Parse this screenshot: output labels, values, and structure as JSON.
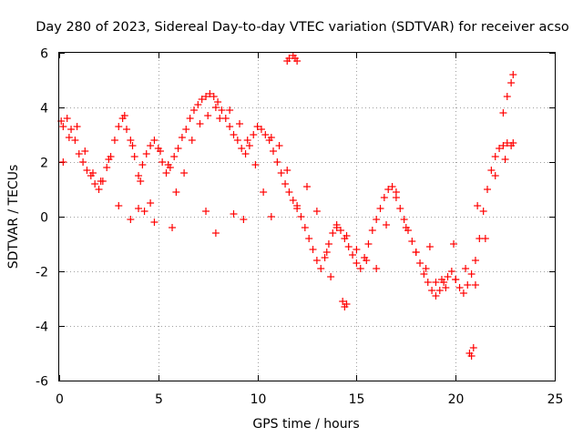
{
  "chart_data": {
    "type": "scatter",
    "title": "Day 280 of 2023, Sidereal Day-to-day VTEC variation (SDTVAR) for receiver acso",
    "xlabel": "GPS time / hours",
    "ylabel": "SDTVAR / TECUs",
    "xlim": [
      0,
      25
    ],
    "ylim": [
      -6,
      6
    ],
    "xticks": [
      0,
      5,
      10,
      15,
      20,
      25
    ],
    "yticks": [
      -6,
      -4,
      -2,
      0,
      2,
      4,
      6
    ],
    "xtick_labels": [
      "0",
      "5",
      "10",
      "15",
      "20",
      "25"
    ],
    "ytick_labels": [
      "-6",
      "-4",
      "-2",
      "0",
      "2",
      "4",
      "6"
    ],
    "grid": true,
    "marker": "+",
    "color": "#ff0000",
    "series": [
      {
        "name": "SDTVAR",
        "x": [
          0.1,
          0.2,
          0.4,
          0.6,
          0.8,
          1.0,
          1.2,
          1.4,
          1.6,
          1.8,
          2.0,
          2.2,
          2.4,
          2.6,
          2.8,
          3.0,
          3.2,
          3.4,
          3.6,
          3.8,
          4.0,
          4.2,
          4.4,
          4.6,
          4.8,
          5.0,
          5.2,
          5.4,
          5.6,
          5.8,
          6.0,
          6.2,
          6.4,
          6.6,
          6.8,
          7.0,
          7.2,
          7.4,
          7.6,
          7.8,
          8.0,
          8.2,
          8.4,
          8.6,
          8.8,
          9.0,
          9.2,
          9.4,
          9.6,
          9.8,
          10.0,
          10.2,
          10.4,
          10.6,
          10.8,
          11.0,
          11.2,
          11.4,
          11.6,
          11.8,
          12.0,
          12.2,
          12.4,
          12.6,
          12.8,
          13.0,
          13.2,
          13.4,
          13.6,
          13.8,
          14.0,
          14.2,
          14.4,
          14.6,
          14.8,
          15.0,
          15.2,
          15.4,
          15.6,
          15.8,
          16.0,
          16.2,
          16.4,
          16.6,
          16.8,
          17.0,
          17.2,
          17.4,
          17.6,
          17.8,
          18.0,
          18.2,
          18.4,
          18.6,
          18.8,
          19.0,
          19.2,
          19.4,
          19.6,
          19.8,
          20.0,
          20.2,
          20.4,
          20.6,
          20.8,
          21.0,
          21.2,
          21.4,
          21.6,
          21.8,
          22.0,
          22.2,
          22.4,
          22.6,
          22.8,
          0.2,
          0.5,
          0.9,
          1.3,
          1.7,
          2.1,
          2.5,
          3.3,
          3.7,
          4.1,
          4.3,
          4.6,
          5.1,
          5.5,
          5.9,
          6.3,
          6.7,
          7.1,
          7.5,
          7.9,
          8.1,
          8.6,
          9.1,
          9.5,
          9.9,
          10.3,
          10.7,
          11.1,
          11.5,
          12.0,
          12.5,
          13.0,
          13.5,
          14.0,
          14.5,
          15.0,
          15.5,
          16.0,
          16.5,
          17.0,
          17.5,
          18.0,
          18.5,
          19.0,
          19.5,
          20.0,
          20.5,
          21.0,
          21.5,
          22.0,
          22.5,
          22.9,
          11.5,
          11.6,
          11.8,
          11.9,
          12.0,
          14.3,
          14.4,
          14.5,
          20.7,
          20.8,
          20.9,
          22.4,
          22.6,
          22.8,
          22.9,
          3.0,
          3.6,
          4.0,
          4.8,
          5.7,
          7.4,
          7.9,
          8.8,
          9.3,
          10.7,
          13.7,
          18.7,
          19.3,
          19.9,
          21.1
        ],
        "y": [
          3.5,
          3.3,
          3.6,
          3.2,
          2.8,
          2.3,
          2.0,
          1.7,
          1.5,
          1.2,
          1.0,
          1.3,
          1.8,
          2.2,
          2.8,
          3.3,
          3.6,
          3.2,
          2.8,
          2.2,
          1.5,
          1.9,
          2.3,
          2.6,
          2.8,
          2.5,
          2.0,
          1.6,
          1.8,
          2.2,
          2.5,
          2.9,
          3.2,
          3.6,
          3.9,
          4.1,
          4.3,
          4.4,
          4.5,
          4.4,
          4.2,
          3.9,
          3.6,
          3.3,
          3.0,
          2.8,
          2.5,
          2.3,
          2.6,
          3.0,
          3.3,
          3.2,
          3.0,
          2.8,
          2.4,
          2.0,
          1.6,
          1.2,
          0.9,
          0.6,
          0.3,
          0.0,
          -0.4,
          -0.8,
          -1.2,
          -1.6,
          -1.9,
          -1.5,
          -1.0,
          -0.6,
          -0.3,
          -0.5,
          -0.8,
          -1.1,
          -1.4,
          -1.7,
          -1.9,
          -1.5,
          -1.0,
          -0.5,
          -0.1,
          0.3,
          0.7,
          1.0,
          1.1,
          0.7,
          0.3,
          -0.1,
          -0.5,
          -0.9,
          -1.3,
          -1.7,
          -2.1,
          -2.4,
          -2.7,
          -2.9,
          -2.7,
          -2.4,
          -2.2,
          -2.0,
          -2.3,
          -2.6,
          -2.8,
          -2.5,
          -2.1,
          -1.6,
          -0.8,
          0.2,
          1.0,
          1.7,
          2.2,
          2.5,
          2.6,
          2.7,
          2.6,
          2.0,
          2.9,
          3.3,
          2.4,
          1.6,
          1.3,
          2.1,
          3.7,
          2.6,
          1.3,
          0.2,
          0.5,
          2.4,
          1.9,
          0.9,
          1.6,
          2.8,
          3.4,
          3.7,
          4.0,
          3.6,
          3.9,
          3.4,
          2.8,
          1.9,
          0.9,
          2.9,
          2.6,
          1.7,
          0.4,
          1.1,
          0.2,
          -1.3,
          -0.4,
          -0.7,
          -1.2,
          -1.6,
          -1.9,
          -0.3,
          0.9,
          -0.4,
          -1.3,
          -1.9,
          -2.4,
          -2.6,
          -2.3,
          -1.9,
          -2.5,
          -0.8,
          1.5,
          2.1,
          2.7,
          5.7,
          5.8,
          5.9,
          5.8,
          5.7,
          -3.1,
          -3.3,
          -3.2,
          -5.0,
          -5.1,
          -4.8,
          3.8,
          4.4,
          4.9,
          5.2,
          0.4,
          -0.1,
          0.3,
          -0.2,
          -0.4,
          0.2,
          -0.6,
          0.1,
          -0.1,
          0.0,
          -2.2,
          -1.1,
          -2.3,
          -1.0,
          0.4
        ]
      }
    ]
  }
}
